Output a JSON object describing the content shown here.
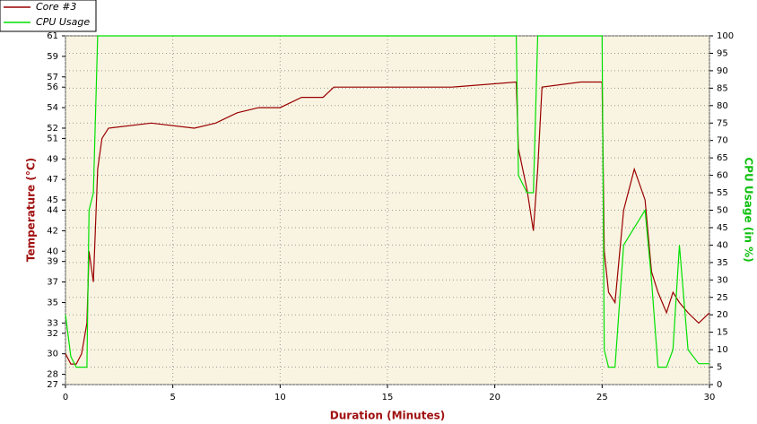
{
  "chart_data": {
    "type": "line",
    "x_label": "Duration (Minutes)",
    "y_label": "Temperature (°C)",
    "y2_label": "CPU Usage (in %)",
    "x": [
      0,
      0.25,
      0.5,
      0.75,
      1,
      1.1,
      1.3,
      1.5,
      1.7,
      2,
      4,
      6,
      7,
      8,
      9,
      10,
      11,
      12,
      12.5,
      15,
      18,
      21,
      21.1,
      21.5,
      21.8,
      22,
      22.2,
      24,
      25,
      25.1,
      25.3,
      25.6,
      26,
      26.5,
      27,
      27.3,
      27.6,
      28,
      28.3,
      28.6,
      29,
      29.5,
      30
    ],
    "series": [
      {
        "name": "Core #3",
        "color": "#990000",
        "values": [
          30,
          29,
          29,
          30,
          33,
          40,
          37,
          48,
          51,
          52,
          52.5,
          52,
          52.5,
          53.5,
          54,
          54,
          55,
          55,
          56,
          56,
          56,
          56.5,
          50,
          46,
          42,
          48,
          56,
          56.5,
          56.5,
          40,
          36,
          35,
          44,
          48,
          45,
          38,
          36,
          34,
          36,
          35,
          34,
          33,
          34
        ]
      },
      {
        "name": "CPU Usage",
        "color": "#00e000",
        "axis": "y2",
        "values": [
          20,
          8,
          5,
          5,
          5,
          50,
          55,
          100,
          100,
          100,
          100,
          100,
          100,
          100,
          100,
          100,
          100,
          100,
          100,
          100,
          100,
          100,
          60,
          55,
          55,
          100,
          100,
          100,
          100,
          10,
          5,
          5,
          40,
          45,
          50,
          30,
          5,
          5,
          10,
          40,
          10,
          6,
          6
        ]
      }
    ],
    "xlim": [
      0,
      30
    ],
    "xticks": [
      0,
      5,
      10,
      15,
      20,
      25,
      30
    ],
    "ylim": [
      27,
      61
    ],
    "yticks": [
      27,
      28,
      30,
      32,
      33,
      35,
      37,
      39,
      40,
      42,
      44,
      45,
      47,
      49,
      51,
      52,
      54,
      56,
      57,
      59,
      61
    ],
    "y2lim": [
      0,
      100
    ],
    "y2ticks": [
      0,
      5,
      10,
      15,
      20,
      25,
      30,
      35,
      40,
      45,
      50,
      55,
      60,
      65,
      70,
      75,
      80,
      85,
      90,
      95,
      100
    ],
    "grid": true,
    "legend": "top-left"
  }
}
